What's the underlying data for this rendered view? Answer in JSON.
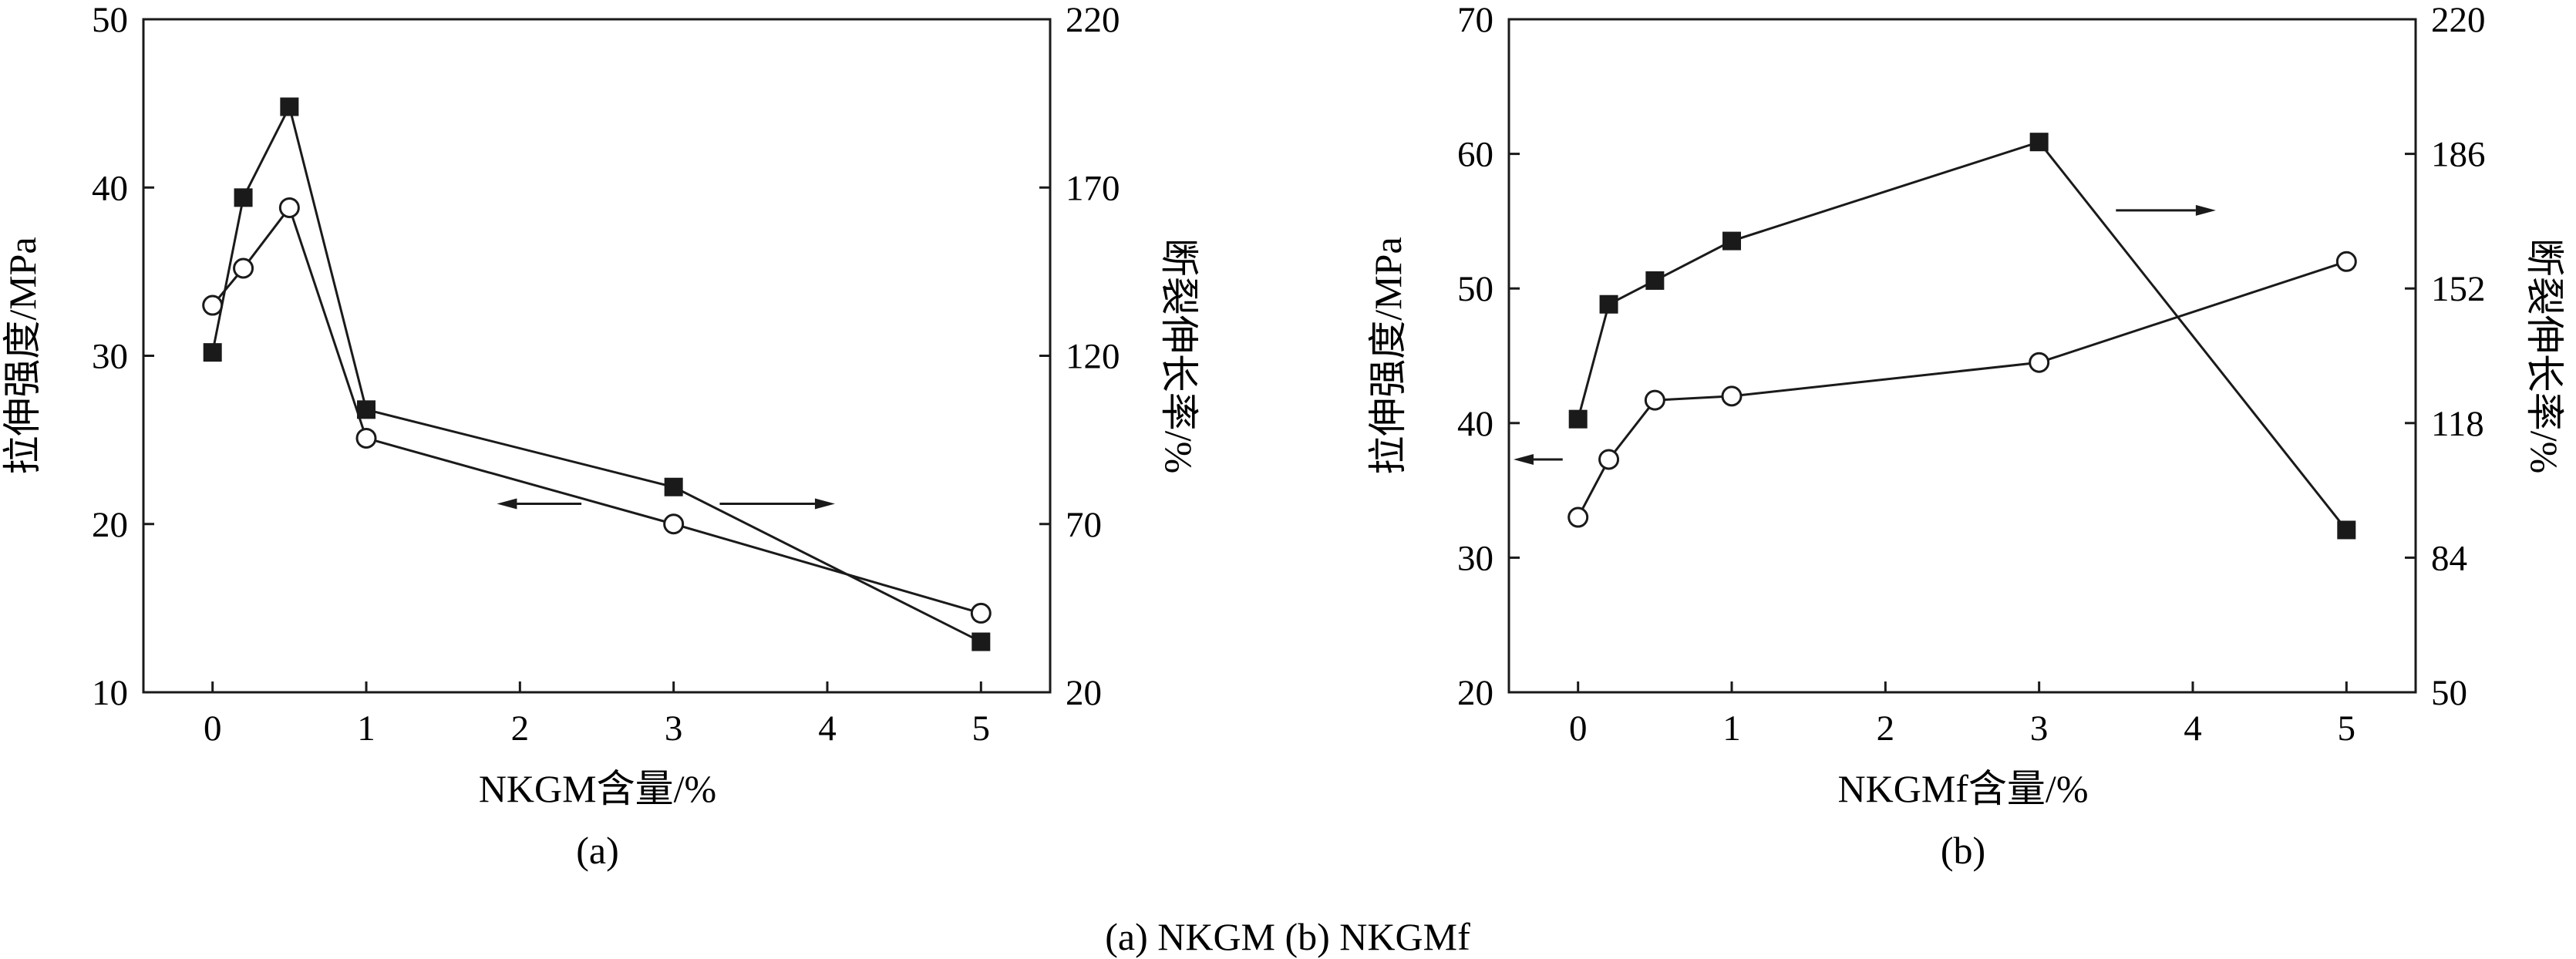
{
  "caption": "(a) NKGM    (b) NKGMf",
  "chart_data": [
    {
      "type": "line",
      "panel_label": "(a)",
      "xlabel": "NKGM含量/%",
      "ylabel_left": "拉伸强度/MPa",
      "ylabel_right": "断裂伸长率/%",
      "x_ticks": [
        0,
        1,
        2,
        3,
        4,
        5
      ],
      "xlim": [
        -0.45,
        5.45
      ],
      "y_left_ticks": [
        10,
        20,
        30,
        40,
        50
      ],
      "ylim_left": [
        10,
        50
      ],
      "y_right_ticks": [
        20,
        70,
        120,
        170,
        220
      ],
      "ylim_right": [
        20,
        220
      ],
      "series": [
        {
          "axis": "left",
          "marker": "open-circle",
          "x": [
            0,
            0.2,
            0.5,
            1,
            3,
            5
          ],
          "y": [
            33.0,
            35.2,
            38.8,
            25.1,
            20.0,
            14.7
          ]
        },
        {
          "axis": "right",
          "marker": "filled-square",
          "x": [
            0,
            0.2,
            0.5,
            1,
            3,
            5
          ],
          "y": [
            121,
            167,
            194,
            104,
            81,
            35
          ]
        }
      ],
      "arrows": [
        {
          "direction": "left",
          "x_from": 2.4,
          "x_to": 1.85,
          "y_left": 21.2
        },
        {
          "direction": "right",
          "x_from": 3.3,
          "x_to": 4.05,
          "y_left": 21.2
        }
      ]
    },
    {
      "type": "line",
      "panel_label": "(b)",
      "xlabel": "NKGMf含量/%",
      "ylabel_left": "拉伸强度/MPa",
      "ylabel_right": "断裂伸长率/%",
      "x_ticks": [
        0,
        1,
        2,
        3,
        4,
        5
      ],
      "xlim": [
        -0.45,
        5.45
      ],
      "y_left_ticks": [
        20,
        30,
        40,
        50,
        60,
        70
      ],
      "ylim_left": [
        20,
        70
      ],
      "y_right_ticks": [
        50,
        84,
        118,
        152,
        186,
        220
      ],
      "ylim_right": [
        50,
        220
      ],
      "series": [
        {
          "axis": "left",
          "marker": "open-circle",
          "x": [
            0,
            0.2,
            0.5,
            1,
            3,
            5
          ],
          "y": [
            33.0,
            37.3,
            41.7,
            42.0,
            44.5,
            52.0
          ]
        },
        {
          "axis": "right",
          "marker": "filled-square",
          "x": [
            0,
            0.2,
            0.5,
            1,
            3,
            5
          ],
          "y": [
            119,
            148,
            154,
            164,
            189,
            91
          ]
        }
      ],
      "arrows": [
        {
          "direction": "left",
          "x_from": -0.1,
          "x_to": -0.42,
          "y_left": 37.3
        },
        {
          "direction": "right",
          "x_from": 3.5,
          "x_to": 4.15,
          "y_left": 55.8
        }
      ]
    }
  ]
}
